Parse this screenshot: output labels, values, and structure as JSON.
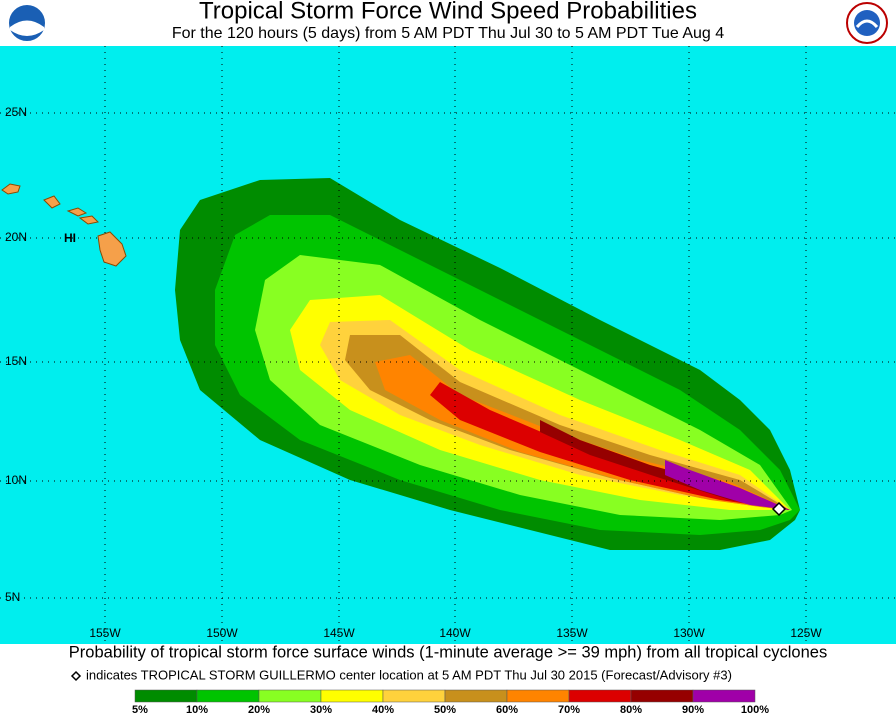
{
  "header": {
    "title": "Tropical Storm Force Wind Speed Probabilities",
    "subtitle": "For the 120 hours (5 days) from 5 AM PDT Thu Jul 30 to 5 AM PDT Tue Aug 4"
  },
  "map": {
    "lat_labels": [
      "25N",
      "20N",
      "15N",
      "10N",
      "5N"
    ],
    "lon_labels": [
      "155W",
      "150W",
      "145W",
      "140W",
      "135W",
      "130W",
      "125W"
    ],
    "place_label": "HI"
  },
  "caption": "Probability of tropical storm force surface winds (1-minute average >= 39 mph) from all tropical cyclones",
  "marker_note": "indicates TROPICAL STORM GUILLERMO center location at 5 AM PDT Thu Jul 30 2015 (Forecast/Advisory #3)",
  "legend": {
    "labels": [
      "5%",
      "10%",
      "20%",
      "30%",
      "40%",
      "50%",
      "60%",
      "70%",
      "80%",
      "90%",
      "100%"
    ],
    "colors": [
      "#008c00",
      "#00c400",
      "#88ff22",
      "#ffff00",
      "#ffd23c",
      "#c8901c",
      "#ff8400",
      "#dc0000",
      "#960000",
      "#a000a8"
    ]
  }
}
